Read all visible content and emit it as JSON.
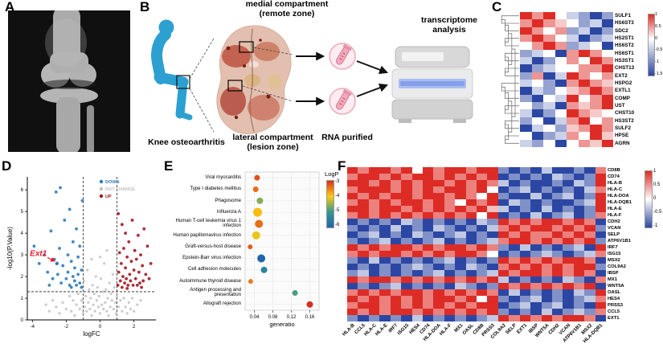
{
  "panels": {
    "a": "A",
    "b": "B",
    "c": "C",
    "d": "D",
    "e": "E",
    "f": "F"
  },
  "panel_b": {
    "medial_line1": "medial compartment",
    "medial_line2": "(remote zone)",
    "lateral_line1": "lateral compartment",
    "lateral_line2": "(lesion zone)",
    "knee_label": "Knee osteoarthritis",
    "rna_label": "RNA purified",
    "transcriptome_line1": "transcriptome",
    "transcriptome_line2": "analysis"
  },
  "chart_data": [
    {
      "id": "panel_c_heatmap",
      "type": "heatmap",
      "rows": [
        "SULF1",
        "HS6ST3",
        "SDC2",
        "HS2ST1",
        "HS6ST2",
        "HS6ST1",
        "HS3ST1",
        "CHST13",
        "EXT2",
        "HSPG2",
        "EXTL1",
        "COMP",
        "UST",
        "CHST10",
        "HS3ST2",
        "SULF2",
        "HPSE",
        "AGRN"
      ],
      "n_cols": 8,
      "value_key": {
        "R": 1,
        "r": 0.5,
        "p": 0.25,
        "w": 0,
        "q": -0.25,
        "b": -0.5,
        "B": -1
      },
      "matrix": [
        "RrRwqbBb",
        "rRrpwbqB",
        "RrwrbqBb",
        "rRrwqBbq",
        "wrRrbqwB",
        "bqwBrRrw",
        "qBbwrwRr",
        "BbqwwrrR",
        "brBqRrwr",
        "qwbBrRrp",
        "BqbwprRr",
        "bBwqRwrR",
        "wbqBrprR",
        "qBbwRrpw",
        "bwBqrRwr",
        "BqwbprRr",
        "wBbqrwRp",
        "qbwBwrpR"
      ],
      "colors": {
        "pos": "#dd2c26",
        "neg": "#2c47a3"
      },
      "colorbar_ticks": [
        "1",
        "0.5",
        "0",
        "-0.5",
        "-1",
        "-1.5"
      ]
    },
    {
      "id": "panel_d_volcano",
      "type": "scatter",
      "xlabel": "logFC",
      "ylabel": "-log10(P.Value)",
      "xlim": [
        -4.3,
        3.3
      ],
      "ylim": [
        0,
        6.6
      ],
      "x_ticks": [
        -4,
        -2,
        0,
        2
      ],
      "y_ticks": [
        0,
        1,
        2,
        3,
        4,
        5,
        6
      ],
      "thresholds": {
        "x": [
          -1,
          1
        ],
        "y": 1.3
      },
      "colors": {
        "down": "#2b7bba",
        "neutral": "#c4c4c4",
        "up": "#a31520"
      },
      "legend": [
        {
          "label": "DOWN",
          "color": "#2b7bba"
        },
        {
          "label": "NOT CHANGE",
          "color": "#bfbfbf"
        },
        {
          "label": "UP",
          "color": "#a31520"
        }
      ],
      "annotation": {
        "text": "Ext1",
        "color": "#e8192c",
        "x": -4.15,
        "y": 2.95,
        "arrow_to": [
          -2.55,
          2.6
        ]
      },
      "series": {
        "down": [
          [
            -3.9,
            3.4
          ],
          [
            -3.6,
            2.6
          ],
          [
            -3.3,
            3.0
          ],
          [
            -3.1,
            2.2
          ],
          [
            -2.9,
            4.1
          ],
          [
            -2.8,
            1.9
          ],
          [
            -2.7,
            2.8
          ],
          [
            -2.6,
            5.9
          ],
          [
            -2.5,
            2.1
          ],
          [
            -2.4,
            3.3
          ],
          [
            -2.35,
            6.1
          ],
          [
            -2.3,
            1.7
          ],
          [
            -2.2,
            2.5
          ],
          [
            -2.1,
            4.6
          ],
          [
            -2.0,
            1.9
          ],
          [
            -1.9,
            3.0
          ],
          [
            -1.9,
            2.2
          ],
          [
            -1.8,
            5.1
          ],
          [
            -1.8,
            1.6
          ],
          [
            -1.7,
            2.7
          ],
          [
            -1.7,
            1.5
          ],
          [
            -1.6,
            2.0
          ],
          [
            -1.6,
            3.6
          ],
          [
            -1.5,
            1.8
          ],
          [
            -1.5,
            2.4
          ],
          [
            -1.4,
            4.2
          ],
          [
            -1.4,
            1.6
          ],
          [
            -1.3,
            2.9
          ],
          [
            -1.3,
            2.1
          ],
          [
            -1.2,
            3.4
          ],
          [
            -1.2,
            1.7
          ],
          [
            -1.1,
            2.3
          ],
          [
            -1.1,
            1.5
          ],
          [
            -1.05,
            5.5
          ],
          [
            -3.0,
            1.6
          ]
        ],
        "up": [
          [
            1.05,
            1.6
          ],
          [
            1.1,
            2.2
          ],
          [
            1.15,
            3.1
          ],
          [
            1.2,
            1.8
          ],
          [
            1.25,
            2.6
          ],
          [
            1.3,
            4.4
          ],
          [
            1.3,
            1.5
          ],
          [
            1.35,
            2.0
          ],
          [
            1.4,
            3.3
          ],
          [
            1.45,
            1.7
          ],
          [
            1.5,
            2.4
          ],
          [
            1.5,
            4.0
          ],
          [
            1.55,
            1.9
          ],
          [
            1.6,
            2.9
          ],
          [
            1.65,
            1.6
          ],
          [
            1.7,
            3.6
          ],
          [
            1.75,
            2.1
          ],
          [
            1.8,
            1.8
          ],
          [
            1.85,
            2.7
          ],
          [
            1.9,
            4.6
          ],
          [
            1.95,
            1.6
          ],
          [
            2.0,
            2.3
          ],
          [
            2.05,
            3.2
          ],
          [
            2.1,
            1.9
          ],
          [
            2.15,
            2.8
          ],
          [
            2.2,
            1.6
          ],
          [
            2.25,
            3.9
          ],
          [
            2.3,
            2.2
          ],
          [
            2.35,
            1.7
          ],
          [
            2.4,
            3.0
          ],
          [
            2.5,
            2.5
          ],
          [
            2.55,
            1.8
          ],
          [
            2.6,
            4.2
          ],
          [
            2.7,
            2.1
          ],
          [
            2.8,
            3.4
          ],
          [
            2.9,
            1.9
          ],
          [
            1.08,
            4.9
          ],
          [
            1.6,
            1.45
          ],
          [
            2.45,
            1.5
          ],
          [
            3.0,
            2.6
          ]
        ],
        "neutral": [
          [
            -2.4,
            0.3
          ],
          [
            -2.2,
            0.8
          ],
          [
            -2.0,
            0.5
          ],
          [
            -1.8,
            1.1
          ],
          [
            -1.7,
            0.4
          ],
          [
            -1.6,
            0.9
          ],
          [
            -1.5,
            0.2
          ],
          [
            -1.4,
            0.7
          ],
          [
            -1.3,
            1.2
          ],
          [
            -1.2,
            0.5
          ],
          [
            -1.1,
            0.9
          ],
          [
            -1.0,
            0.3
          ],
          [
            -0.95,
            1.8
          ],
          [
            -0.9,
            0.6
          ],
          [
            -0.85,
            1.1
          ],
          [
            -0.8,
            0.4
          ],
          [
            -0.75,
            2.3
          ],
          [
            -0.7,
            0.8
          ],
          [
            -0.65,
            1.4
          ],
          [
            -0.6,
            0.5
          ],
          [
            -0.55,
            1.0
          ],
          [
            -0.5,
            0.2
          ],
          [
            -0.45,
            1.6
          ],
          [
            -0.4,
            0.7
          ],
          [
            -0.35,
            1.2
          ],
          [
            -0.3,
            0.4
          ],
          [
            -0.25,
            2.0
          ],
          [
            -0.2,
            0.9
          ],
          [
            -0.15,
            1.5
          ],
          [
            -0.1,
            0.6
          ],
          [
            -0.05,
            1.1
          ],
          [
            0.0,
            0.3
          ],
          [
            0.05,
            1.9
          ],
          [
            0.1,
            0.7
          ],
          [
            0.15,
            1.3
          ],
          [
            0.2,
            0.5
          ],
          [
            0.25,
            2.6
          ],
          [
            0.3,
            0.8
          ],
          [
            0.35,
            1.4
          ],
          [
            0.4,
            0.4
          ],
          [
            0.45,
            1.0
          ],
          [
            0.5,
            0.2
          ],
          [
            0.55,
            1.7
          ],
          [
            0.6,
            0.6
          ],
          [
            0.65,
            1.2
          ],
          [
            0.7,
            0.9
          ],
          [
            0.75,
            2.1
          ],
          [
            0.8,
            0.5
          ],
          [
            0.85,
            1.5
          ],
          [
            0.9,
            0.8
          ],
          [
            0.95,
            0.3
          ],
          [
            1.0,
            1.1
          ],
          [
            1.1,
            0.6
          ],
          [
            1.2,
            0.9
          ],
          [
            1.3,
            0.4
          ],
          [
            1.4,
            1.0
          ],
          [
            1.5,
            0.6
          ],
          [
            1.6,
            0.3
          ],
          [
            1.7,
            0.8
          ],
          [
            1.8,
            0.5
          ],
          [
            1.9,
            1.0
          ],
          [
            2.0,
            0.4
          ],
          [
            2.2,
            0.7
          ],
          [
            2.4,
            0.9
          ],
          [
            -2.6,
            0.6
          ],
          [
            -2.8,
            0.9
          ],
          [
            -3.0,
            0.4
          ],
          [
            -3.2,
            0.7
          ],
          [
            0.0,
            2.9
          ],
          [
            -0.5,
            2.8
          ],
          [
            0.4,
            3.2
          ]
        ]
      }
    },
    {
      "id": "panel_e_dotplot",
      "type": "scatter",
      "xlabel": "generatio",
      "xlim": [
        0.02,
        0.18
      ],
      "x_ticks": [
        0.04,
        0.08,
        0.12,
        0.16
      ],
      "legend_title": "LogP",
      "legend_ticks": [
        -3,
        -4,
        -5,
        -6
      ],
      "color_stops": [
        [
          -3,
          "#d7301f"
        ],
        [
          -4,
          "#fdcc0d"
        ],
        [
          -5,
          "#35978f"
        ],
        [
          -6,
          "#2166ac"
        ]
      ],
      "items": [
        {
          "label": "Viral myocarditis",
          "x": 0.046,
          "logp": -3.2,
          "r": 3.5
        },
        {
          "label": "Type I diabetes mellitus",
          "x": 0.043,
          "logp": -3.4,
          "r": 3.5
        },
        {
          "label": "Phagosome",
          "x": 0.052,
          "logp": -4.6,
          "r": 4
        },
        {
          "label": "Influenza A",
          "x": 0.047,
          "logp": -3.9,
          "r": 5.5
        },
        {
          "label": "Human T-cell leukemia virus 1 infection",
          "x": 0.05,
          "logp": -3.4,
          "r": 5
        },
        {
          "label": "Human papillomavirus infection",
          "x": 0.044,
          "logp": -4.1,
          "r": 5
        },
        {
          "label": "Graft-versus-host disease",
          "x": 0.031,
          "logp": -3.3,
          "r": 3
        },
        {
          "label": "Epstein-Barr virus infection",
          "x": 0.055,
          "logp": -6.0,
          "r": 5
        },
        {
          "label": "Cell adhesion molecules",
          "x": 0.061,
          "logp": -5.4,
          "r": 4
        },
        {
          "label": "Autoimmune thyroid disease",
          "x": 0.032,
          "logp": -3.5,
          "r": 3
        },
        {
          "label": "Antigen processing and presentation",
          "x": 0.128,
          "logp": -4.9,
          "r": 3.5
        },
        {
          "label": "Allograft rejection",
          "x": 0.16,
          "logp": -3.0,
          "r": 4
        }
      ]
    },
    {
      "id": "panel_f_heatmap",
      "type": "heatmap",
      "rows": [
        "CD8B",
        "CD74",
        "HLA-B",
        "HLA-C",
        "HLA-DOA",
        "HLA-DQB1",
        "HLA-E",
        "HLA-F",
        "CDH2",
        "VCAN",
        "SELP",
        "ATP6V1B1",
        "IRF7",
        "ISG15",
        "MSX2",
        "COL9A2",
        "IBSP",
        "MX1",
        "WNT5A",
        "OASL",
        "HES4",
        "PRSS3",
        "CCL5",
        "EXT1"
      ],
      "cols": [
        "HLA-B",
        "CCL5",
        "HLA-C",
        "HLA-E",
        "IRF7",
        "ISG15",
        "HES4",
        "CD74",
        "HLA-DOA",
        "HLA-F",
        "MX1",
        "OASL",
        "CD8B",
        "PRSS3",
        "COL9A2",
        "SELP",
        "EXT1",
        "IBSP",
        "WNT5A",
        "CDH2",
        "VCAN",
        "ATP6V1B1",
        "MSX2",
        "HLA-DQB1"
      ],
      "value_key": {
        "R": 1,
        "r": 0.6,
        "p": 0.3,
        "w": 0,
        "q": -0.3,
        "b": -0.6,
        "B": -1
      },
      "matrix": [
        "RrRRrRwRrRRrRRbBbBqBBbBr",
        "rRRrRrRRrRrRrRBbBbBqbBbR",
        "RRrRrRrRRrRrRrqBbBBbBqbR",
        "rRRRrRrRrRRrRwBbqBbBbBqr",
        "RrRrRRrRRrRrwRbBBqBbqBbR",
        "rRrRrRRrRrwRrRBqbBbBBbqR",
        "RRrRRrRrRrRrRpqBbBqBbBbR",
        "rRrRrRrRrRrRwRBbBqBbqBbr",
        "BbBbBqbBbBbBqbRrRrRRrRrB",
        "bBbBqBbBqbBbBqrRrRRrRrRb",
        "BbqBbBqbBbqBbBRrRrrRrRrB",
        "bBbqBbBbqBbBbqrRRrRrRrRb",
        "RrRrRRrRrRRrRrbBqBbBbqBR",
        "rRrRRrRrRrRRrwBbBbqbBbqr",
        "bBqBbBbBbqBbBbRrRrRrRRrB",
        "BbBbBbqbBbBqbBrRrRrRrRRb",
        "bqBbBbBbqBbBbqRrRRrRrRrB",
        "RrRRrRrRrRrRrRqBbBbBqbBr",
        "BbBbqBbBbBqbBbRrRrRrRrRB",
        "rRrRrRRrRrRrRrBqBbBbBqbR",
        "RrRrRrRrRRrRwRbBbqBbBbqr",
        "rRRrRrRrRrRrRRBbqBbqBbBR",
        "RrRrRRrRrRrRrRbBbBqBbqbr",
        "bBbBbBqBbBbBbqRrRrRrRRrB"
      ],
      "colors": {
        "pos": "#dd2c26",
        "neg": "#2c47a3"
      },
      "colorbar_ticks": [
        "1",
        "0.5",
        "0",
        "-0.5",
        "-1"
      ]
    }
  ]
}
